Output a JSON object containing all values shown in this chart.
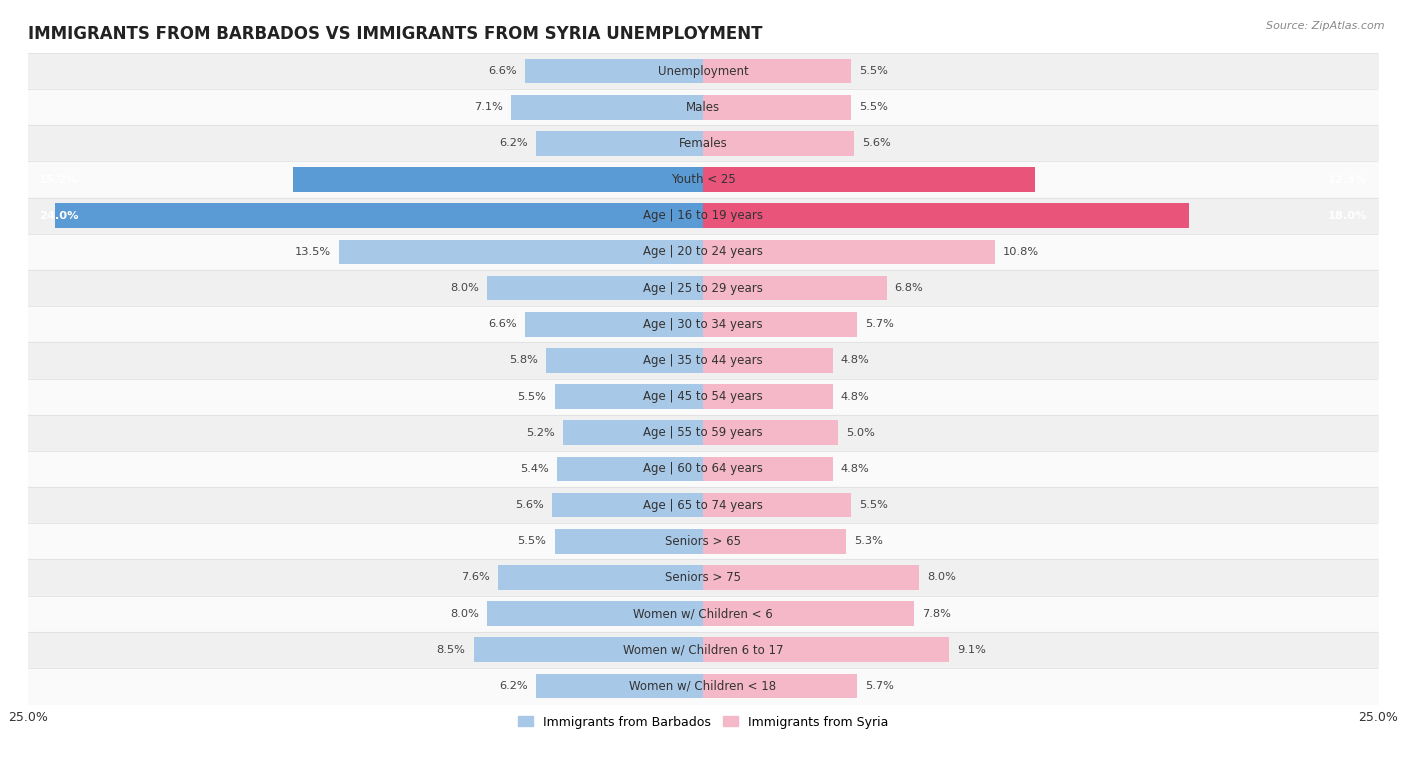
{
  "title": "IMMIGRANTS FROM BARBADOS VS IMMIGRANTS FROM SYRIA UNEMPLOYMENT",
  "source": "Source: ZipAtlas.com",
  "categories": [
    "Unemployment",
    "Males",
    "Females",
    "Youth < 25",
    "Age | 16 to 19 years",
    "Age | 20 to 24 years",
    "Age | 25 to 29 years",
    "Age | 30 to 34 years",
    "Age | 35 to 44 years",
    "Age | 45 to 54 years",
    "Age | 55 to 59 years",
    "Age | 60 to 64 years",
    "Age | 65 to 74 years",
    "Seniors > 65",
    "Seniors > 75",
    "Women w/ Children < 6",
    "Women w/ Children 6 to 17",
    "Women w/ Children < 18"
  ],
  "barbados_values": [
    6.6,
    7.1,
    6.2,
    15.2,
    24.0,
    13.5,
    8.0,
    6.6,
    5.8,
    5.5,
    5.2,
    5.4,
    5.6,
    5.5,
    7.6,
    8.0,
    8.5,
    6.2
  ],
  "syria_values": [
    5.5,
    5.5,
    5.6,
    12.3,
    18.0,
    10.8,
    6.8,
    5.7,
    4.8,
    4.8,
    5.0,
    4.8,
    5.5,
    5.3,
    8.0,
    7.8,
    9.1,
    5.7
  ],
  "barbados_color": "#A8C8E8",
  "syria_color": "#F4B8C8",
  "barbados_highlight_color": "#5B9BD5",
  "syria_highlight_color": "#E8547A",
  "row_bg_even": "#F0F0F0",
  "row_bg_odd": "#FAFAFA",
  "row_border": "#DDDDDD",
  "xlim": 25.0,
  "legend_barbados": "Immigrants from Barbados",
  "legend_syria": "Immigrants from Syria",
  "title_fontsize": 12,
  "label_fontsize": 8.5,
  "value_fontsize": 8.2,
  "bar_height": 0.68
}
